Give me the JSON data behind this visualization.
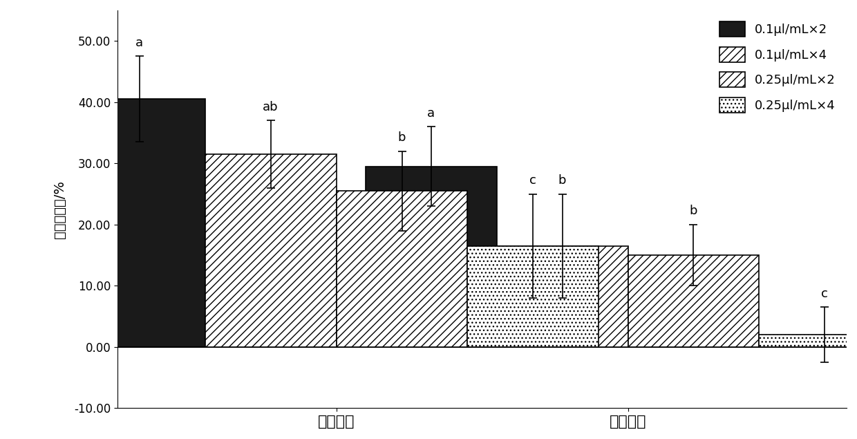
{
  "groups": [
    "正常条件",
    "干旱条件"
  ],
  "series_labels": [
    "0.1μl/mL×2",
    "0.1μl/mL×4",
    "0.25μl/mL×2",
    "0.25μl/mL×4"
  ],
  "values": [
    [
      40.5,
      31.5,
      25.5,
      16.5
    ],
    [
      29.5,
      16.5,
      15.0,
      2.0
    ]
  ],
  "errors": [
    [
      7.0,
      5.5,
      6.5,
      8.5
    ],
    [
      6.5,
      8.5,
      5.0,
      4.5
    ]
  ],
  "sig_labels": [
    [
      "a",
      "ab",
      "b",
      "c"
    ],
    [
      "a",
      "b",
      "b",
      "c"
    ]
  ],
  "ylim": [
    -10,
    55
  ],
  "yticks": [
    -10.0,
    0.0,
    10.0,
    20.0,
    30.0,
    40.0,
    50.0
  ],
  "ytick_labels": [
    "-10.00",
    "0.00",
    "10.00",
    "20.00",
    "30.00",
    "40.00",
    "50.00"
  ],
  "ylabel": "苗高增长率/%",
  "bar_width": 0.18,
  "group_centers": [
    0.35,
    0.75
  ],
  "background_color": "#ffffff",
  "hatch_patterns": [
    "",
    "///",
    "///",
    "..."
  ],
  "bar_colors": [
    "#1a1a1a",
    "#888888",
    "#aaaaaa",
    "#cccccc"
  ],
  "edge_colors": [
    "#000000",
    "#000000",
    "#000000",
    "#000000"
  ]
}
